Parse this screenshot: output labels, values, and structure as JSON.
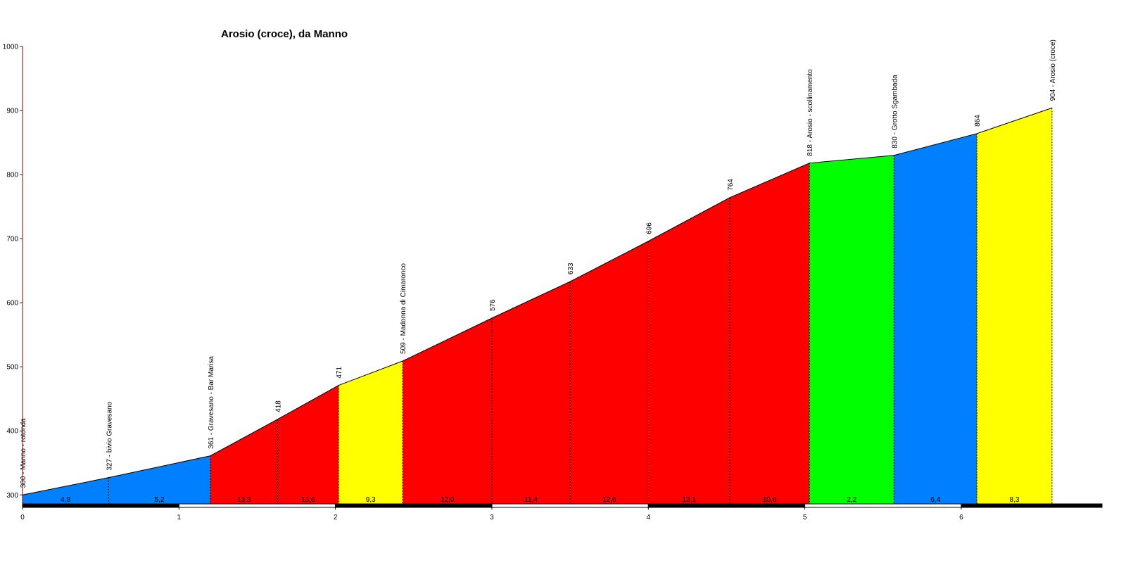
{
  "chart_data": {
    "type": "profile",
    "title": "Arosio (croce), da Manno",
    "x": [
      0,
      0.55,
      1.2,
      1.63,
      2.02,
      2.43,
      3.0,
      3.5,
      4.0,
      4.52,
      5.03,
      5.57,
      6.1,
      6.58
    ],
    "values": [
      300,
      327,
      361,
      418,
      471,
      509,
      576,
      633,
      696,
      764,
      818,
      830,
      864,
      904
    ],
    "value_labels": [
      "300 - Manno - rotonda",
      "327 - bivio Gravesano",
      "361 - Gravesano - Bar Marisa",
      "418",
      "471",
      "509 - Madonna di Cimaronco",
      "576",
      "633",
      "696",
      "764",
      "818 - Arosio - scollinamento",
      "830 - Grotto Sgambada",
      "864",
      "904 - Arosio (croce)"
    ],
    "segments": {
      "values": [
        4.8,
        5.2,
        13.3,
        13.6,
        9.3,
        12.0,
        11.4,
        12.6,
        13.1,
        10.6,
        2.2,
        6.4,
        8.3
      ],
      "value_labels": [
        "4,8",
        "5,2",
        "13,3",
        "13,6",
        "9,3",
        "12,0",
        "11,4",
        "12,6",
        "13,1",
        "10,6",
        "2,2",
        "6,4",
        "8,3"
      ],
      "colors": [
        "#0080ff",
        "#0080ff",
        "#ff0000",
        "#ff0000",
        "#ffff00",
        "#ff0000",
        "#ff0000",
        "#ff0000",
        "#ff0000",
        "#ff0000",
        "#00ff00",
        "#0080ff",
        "#ffff00"
      ]
    },
    "xlim": [
      0,
      6.9
    ],
    "ylim": [
      286,
      1000
    ],
    "xticks": [
      0,
      1,
      2,
      3,
      4,
      5,
      6
    ],
    "yticks": [
      300,
      400,
      500,
      600,
      700,
      800,
      900,
      1000
    ]
  }
}
